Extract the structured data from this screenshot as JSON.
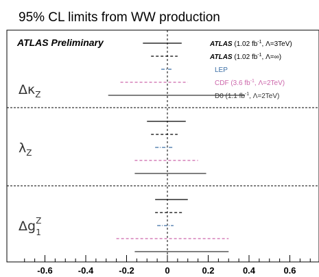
{
  "chart_data": {
    "type": "interval",
    "title": "95% CL limits from WW production",
    "annotation": "ATLAS Preliminary",
    "xlim": [
      -0.7,
      0.7
    ],
    "xticks": [
      "-0.6",
      "-0.4",
      "-0.2",
      "0",
      "0.2",
      "0.4",
      "0.6"
    ],
    "xtick_values": [
      -0.6,
      -0.4,
      -0.2,
      0,
      0.2,
      0.4,
      0.6
    ],
    "grid": false,
    "parameters": [
      {
        "name": "Δκ",
        "sub": "Z",
        "sup": ""
      },
      {
        "name": "λ",
        "sub": "Z",
        "sup": ""
      },
      {
        "name": "Δg",
        "sub": "1",
        "sup": "Z"
      }
    ],
    "series": [
      {
        "name_bold": "ATLAS",
        "name_rest": " (1.02 fb",
        "name_sup": "-1",
        "name_tail": ", Λ=3TeV)",
        "color": "#000000",
        "style": "solid",
        "intervals": [
          [
            -0.12,
            0.07
          ],
          [
            -0.1,
            0.09
          ],
          [
            -0.06,
            0.1
          ]
        ]
      },
      {
        "name_bold": "ATLAS",
        "name_rest": " (1.02 fb",
        "name_sup": "-1",
        "name_tail": ", Λ=∞)",
        "color": "#000000",
        "style": "dashed",
        "intervals": [
          [
            -0.08,
            0.05
          ],
          [
            -0.08,
            0.05
          ],
          [
            -0.06,
            0.08
          ]
        ]
      },
      {
        "name_bold": "",
        "name_rest": "LEP",
        "name_sup": "",
        "name_tail": "",
        "color": "#3a6ea5",
        "style": "dashdot",
        "intervals": [
          [
            -0.03,
            0.02
          ],
          [
            -0.06,
            0.03
          ],
          [
            -0.05,
            0.03
          ]
        ]
      },
      {
        "name_bold": "",
        "name_rest": "CDF (3.6 fb",
        "name_sup": "-1",
        "name_tail": ", Λ=2TeV)",
        "color": "#cc66aa",
        "style": "dashed",
        "intervals": [
          [
            -0.23,
            0.1
          ],
          [
            -0.16,
            0.15
          ],
          [
            -0.25,
            0.3
          ]
        ]
      },
      {
        "name_bold": "",
        "name_rest": "D0 (1.1 fb",
        "name_sup": "-1",
        "name_tail": ", Λ=2TeV)",
        "color": "#333333",
        "style": "solid",
        "intervals": [
          [
            -0.29,
            0.38
          ],
          [
            -0.16,
            0.19
          ],
          [
            -0.16,
            0.3
          ]
        ]
      }
    ]
  }
}
